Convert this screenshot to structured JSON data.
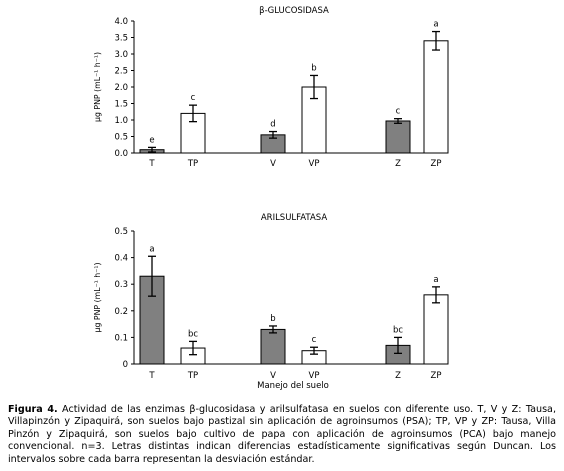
{
  "chart_data": [
    {
      "type": "bar",
      "title": "β-GLUCOSIDASA",
      "ylabel": "µg PNP (mL⁻¹ h⁻¹)",
      "xlabel": "",
      "ylim": [
        0,
        4.0
      ],
      "yticks": [
        "0.0",
        "0.5",
        "1.0",
        "1.5",
        "2.0",
        "2.5",
        "3.0",
        "3.5",
        "4.0"
      ],
      "categories": [
        "T",
        "TP",
        "V",
        "VP",
        "Z",
        "ZP"
      ],
      "values": [
        0.1,
        1.2,
        0.55,
        2.0,
        0.97,
        3.4
      ],
      "errors": [
        0.07,
        0.25,
        0.1,
        0.35,
        0.07,
        0.28
      ],
      "letters": [
        "e",
        "c",
        "d",
        "b",
        "c",
        "a"
      ],
      "fills": [
        "#808080",
        "#ffffff",
        "#808080",
        "#ffffff",
        "#808080",
        "#ffffff"
      ]
    },
    {
      "type": "bar",
      "title": "ARILSULFATASA",
      "ylabel": "µg PNP (mL⁻¹ h⁻¹)",
      "xlabel": "Manejo del suelo",
      "ylim": [
        0,
        0.5
      ],
      "yticks": [
        "0",
        "0.1",
        "0.2",
        "0.3",
        "0.4",
        "0.5"
      ],
      "categories": [
        "T",
        "TP",
        "V",
        "VP",
        "Z",
        "ZP"
      ],
      "values": [
        0.33,
        0.06,
        0.13,
        0.05,
        0.07,
        0.26
      ],
      "errors": [
        0.075,
        0.025,
        0.013,
        0.013,
        0.03,
        0.03
      ],
      "letters": [
        "a",
        "bc",
        "b",
        "c",
        "bc",
        "a"
      ],
      "fills": [
        "#808080",
        "#ffffff",
        "#808080",
        "#ffffff",
        "#808080",
        "#ffffff"
      ]
    }
  ],
  "caption": {
    "label": "Figura 4.",
    "text": " Actividad de las enzimas β-glucosidasa y arilsulfatasa en suelos con diferente uso. T, V y Z: Tausa, Villapinzón y Zipaquirá, son suelos bajo pastizal sin aplicación de agroinsumos (PSA); TP, VP y  ZP: Tausa, Villa Pinzón y Zipaquirá, son suelos bajo cultivo de papa con aplicación de agroinsumos (PCA) bajo manejo convencional. n=3. Letras distintas indican diferencias estadísticamente significativas según Duncan. Los intervalos sobre cada barra representan la desviación estándar."
  }
}
